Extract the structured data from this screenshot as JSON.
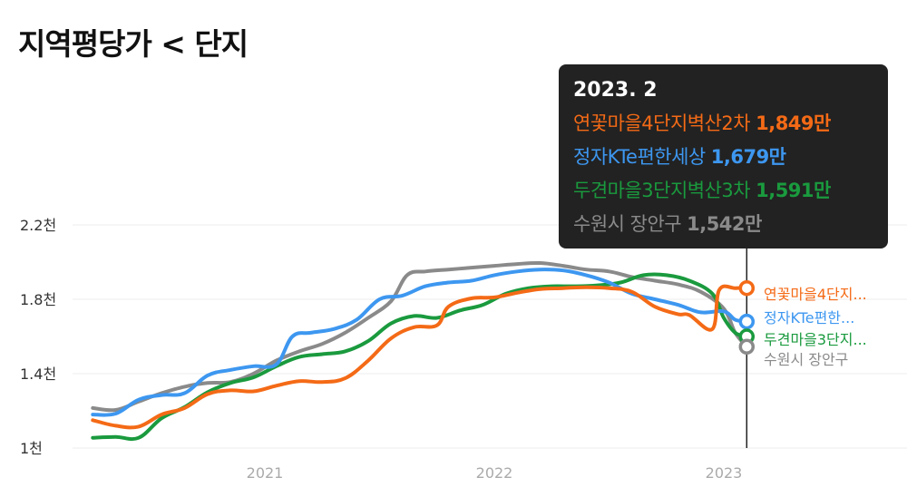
{
  "page": {
    "title": "지역평당가 < 단지"
  },
  "tooltip": {
    "date": "2023. 2",
    "rows": [
      {
        "name": "연꽃마을4단지벽산2차",
        "value": "1,849만",
        "color": "#f46a16"
      },
      {
        "name": "정자KTe편한세상",
        "value": "1,679만",
        "color": "#3d97f0"
      },
      {
        "name": "두견마을3단지벽산3차",
        "value": "1,591만",
        "color": "#1a9a3e"
      },
      {
        "name": "수원시 장안구",
        "value": "1,542만",
        "color": "#8a8a8a"
      }
    ]
  },
  "chart_data": {
    "type": "line",
    "title": "",
    "xlabel": "",
    "ylabel": "",
    "x_ticks": [
      2021,
      2022,
      2023
    ],
    "x_tick_labels": [
      "2021",
      "2022",
      "2023"
    ],
    "y_ticks": [
      1000,
      1400,
      1800,
      2200
    ],
    "y_tick_labels": [
      "1천",
      "1.4천",
      "1.8천",
      "2.2천"
    ],
    "ylim": [
      1000,
      2200
    ],
    "xlim": [
      2020.2,
      2023.6
    ],
    "grid": true,
    "cursor_x": 2023.1,
    "end_labels": [
      "연꽃마을4단지...",
      "정자KTe편한...",
      "두견마을3단지...",
      "수원시 장안구"
    ],
    "series": [
      {
        "name": "연꽃마을4단지벽산2차",
        "color": "#f46a16",
        "points": [
          [
            2020.25,
            1150
          ],
          [
            2020.35,
            1120
          ],
          [
            2020.45,
            1115
          ],
          [
            2020.55,
            1180
          ],
          [
            2020.65,
            1215
          ],
          [
            2020.75,
            1290
          ],
          [
            2020.85,
            1310
          ],
          [
            2020.95,
            1305
          ],
          [
            2021.05,
            1335
          ],
          [
            2021.15,
            1360
          ],
          [
            2021.25,
            1355
          ],
          [
            2021.35,
            1375
          ],
          [
            2021.45,
            1470
          ],
          [
            2021.55,
            1590
          ],
          [
            2021.65,
            1650
          ],
          [
            2021.75,
            1660
          ],
          [
            2021.8,
            1760
          ],
          [
            2021.9,
            1805
          ],
          [
            2022.0,
            1810
          ],
          [
            2022.1,
            1835
          ],
          [
            2022.2,
            1855
          ],
          [
            2022.3,
            1860
          ],
          [
            2022.4,
            1865
          ],
          [
            2022.5,
            1860
          ],
          [
            2022.6,
            1840
          ],
          [
            2022.7,
            1760
          ],
          [
            2022.8,
            1720
          ],
          [
            2022.85,
            1715
          ],
          [
            2022.95,
            1640
          ],
          [
            2022.98,
            1850
          ],
          [
            2023.05,
            1860
          ],
          [
            2023.1,
            1860
          ]
        ]
      },
      {
        "name": "정자KTe편한세상",
        "color": "#3d97f0",
        "points": [
          [
            2020.25,
            1180
          ],
          [
            2020.35,
            1185
          ],
          [
            2020.45,
            1260
          ],
          [
            2020.55,
            1285
          ],
          [
            2020.65,
            1295
          ],
          [
            2020.75,
            1390
          ],
          [
            2020.85,
            1420
          ],
          [
            2020.95,
            1440
          ],
          [
            2021.05,
            1450
          ],
          [
            2021.12,
            1600
          ],
          [
            2021.2,
            1620
          ],
          [
            2021.3,
            1640
          ],
          [
            2021.4,
            1690
          ],
          [
            2021.5,
            1800
          ],
          [
            2021.6,
            1820
          ],
          [
            2021.7,
            1870
          ],
          [
            2021.8,
            1890
          ],
          [
            2021.9,
            1900
          ],
          [
            2022.0,
            1930
          ],
          [
            2022.1,
            1950
          ],
          [
            2022.2,
            1960
          ],
          [
            2022.3,
            1955
          ],
          [
            2022.4,
            1930
          ],
          [
            2022.5,
            1890
          ],
          [
            2022.6,
            1830
          ],
          [
            2022.7,
            1800
          ],
          [
            2022.8,
            1770
          ],
          [
            2022.9,
            1730
          ],
          [
            2023.0,
            1735
          ],
          [
            2023.05,
            1690
          ],
          [
            2023.1,
            1680
          ]
        ]
      },
      {
        "name": "두견마을3단지벽산3차",
        "color": "#1a9a3e",
        "points": [
          [
            2020.25,
            1055
          ],
          [
            2020.35,
            1060
          ],
          [
            2020.45,
            1055
          ],
          [
            2020.55,
            1160
          ],
          [
            2020.65,
            1220
          ],
          [
            2020.75,
            1300
          ],
          [
            2020.85,
            1350
          ],
          [
            2020.95,
            1380
          ],
          [
            2021.05,
            1440
          ],
          [
            2021.15,
            1490
          ],
          [
            2021.25,
            1505
          ],
          [
            2021.35,
            1520
          ],
          [
            2021.45,
            1575
          ],
          [
            2021.55,
            1670
          ],
          [
            2021.65,
            1710
          ],
          [
            2021.75,
            1700
          ],
          [
            2021.85,
            1740
          ],
          [
            2021.95,
            1770
          ],
          [
            2022.05,
            1830
          ],
          [
            2022.15,
            1860
          ],
          [
            2022.25,
            1870
          ],
          [
            2022.35,
            1870
          ],
          [
            2022.45,
            1875
          ],
          [
            2022.55,
            1890
          ],
          [
            2022.65,
            1930
          ],
          [
            2022.75,
            1930
          ],
          [
            2022.85,
            1900
          ],
          [
            2022.95,
            1830
          ],
          [
            2023.0,
            1700
          ],
          [
            2023.05,
            1620
          ],
          [
            2023.1,
            1600
          ]
        ]
      },
      {
        "name": "수원시 장안구",
        "color": "#8a8a8a",
        "points": [
          [
            2020.25,
            1215
          ],
          [
            2020.35,
            1205
          ],
          [
            2020.45,
            1250
          ],
          [
            2020.55,
            1295
          ],
          [
            2020.65,
            1330
          ],
          [
            2020.75,
            1350
          ],
          [
            2020.85,
            1355
          ],
          [
            2020.95,
            1400
          ],
          [
            2021.05,
            1470
          ],
          [
            2021.15,
            1520
          ],
          [
            2021.25,
            1560
          ],
          [
            2021.35,
            1620
          ],
          [
            2021.45,
            1700
          ],
          [
            2021.55,
            1790
          ],
          [
            2021.62,
            1930
          ],
          [
            2021.7,
            1950
          ],
          [
            2021.8,
            1960
          ],
          [
            2021.9,
            1970
          ],
          [
            2022.0,
            1980
          ],
          [
            2022.1,
            1990
          ],
          [
            2022.2,
            1995
          ],
          [
            2022.3,
            1980
          ],
          [
            2022.4,
            1960
          ],
          [
            2022.5,
            1950
          ],
          [
            2022.6,
            1920
          ],
          [
            2022.7,
            1900
          ],
          [
            2022.8,
            1880
          ],
          [
            2022.9,
            1840
          ],
          [
            2023.0,
            1750
          ],
          [
            2023.05,
            1620
          ],
          [
            2023.1,
            1545
          ]
        ]
      }
    ]
  }
}
